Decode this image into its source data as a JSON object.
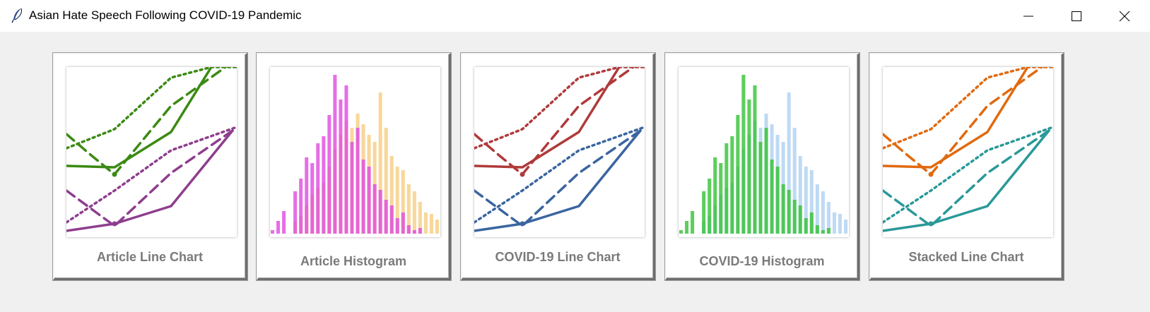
{
  "window": {
    "title": "Asian Hate Speech Following COVID-19 Pandemic",
    "icon": "feather-icon",
    "controls": [
      "minimize-icon",
      "maximize-icon",
      "close-icon"
    ]
  },
  "cards": [
    {
      "label": "Article Line Chart",
      "kind": "line",
      "colors": {
        "a": "#3b8a13",
        "b": "#8e3e8e"
      }
    },
    {
      "label": "Article Histogram",
      "kind": "hist",
      "colors": {
        "a": "#e04ae0",
        "b": "#f5c97a"
      }
    },
    {
      "label": "COVID-19 Line Chart",
      "kind": "line",
      "colors": {
        "a": "#b03a3a",
        "b": "#3a65a0"
      }
    },
    {
      "label": "COVID-19 Histogram",
      "kind": "hist",
      "colors": {
        "a": "#33c233",
        "b": "#a8cdf0"
      }
    },
    {
      "label": "Stacked Line Chart",
      "kind": "line",
      "colors": {
        "a": "#e06a10",
        "b": "#2a9898"
      }
    }
  ]
}
